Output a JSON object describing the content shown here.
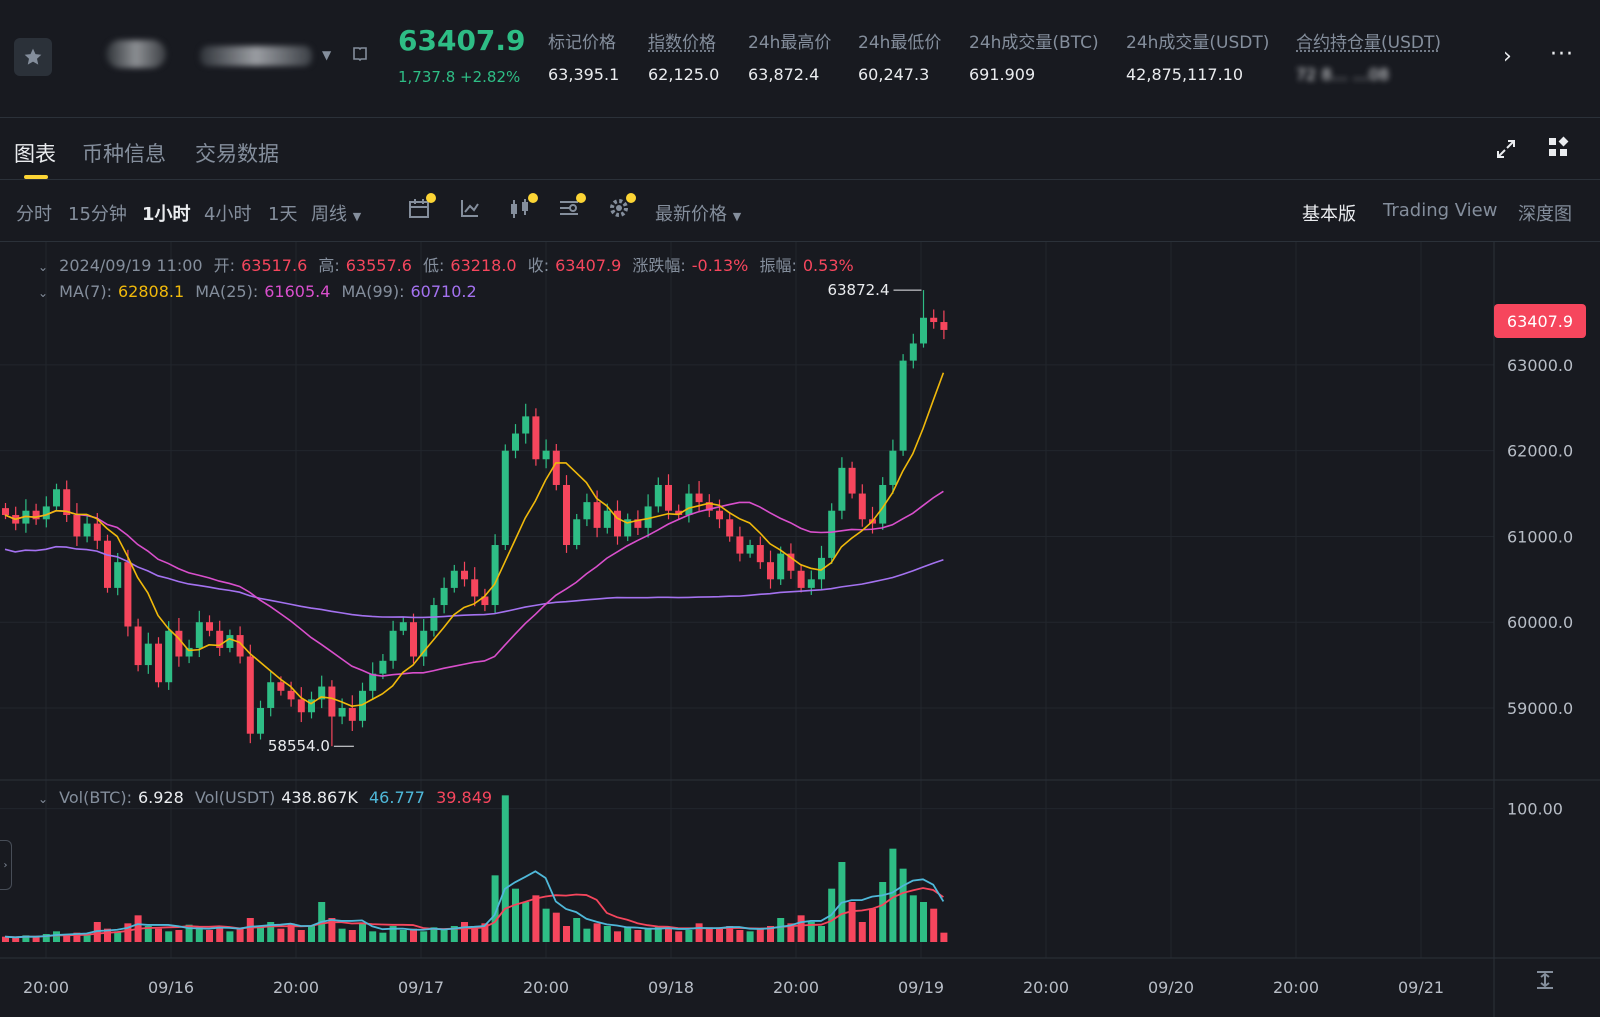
{
  "header": {
    "last_price": "63407.9",
    "change": "1,737.8 +2.82%",
    "stats": [
      {
        "label": "标记价格",
        "value": "63,395.1"
      },
      {
        "label": "指数价格",
        "value": "62,125.0"
      },
      {
        "label": "24h最高价",
        "value": "63,872.4"
      },
      {
        "label": "24h最低价",
        "value": "60,247.3"
      },
      {
        "label": "24h成交量(BTC)",
        "value": "691.909"
      },
      {
        "label": "24h成交量(USDT)",
        "value": "42,875,117.10"
      },
      {
        "label": "合约持仓量(USDT)",
        "value": "72 8… …08"
      }
    ]
  },
  "tabs": [
    "图表",
    "币种信息",
    "交易数据"
  ],
  "toolbar": {
    "timeframes": [
      "分时",
      "15分钟",
      "1小时",
      "4小时",
      "1天",
      "周线"
    ],
    "active_timeframe": "1小时",
    "price_type": "最新价格",
    "views": [
      "基本版",
      "Trading View",
      "深度图"
    ],
    "active_view": "基本版"
  },
  "legend": {
    "date": "2024/09/19 11:00",
    "open_label": "开:",
    "open": "63517.6",
    "high_label": "高:",
    "high": "63557.6",
    "low_label": "低:",
    "low": "63218.0",
    "close_label": "收:",
    "close": "63407.9",
    "change_label": "涨跌幅:",
    "change": "-0.13%",
    "amp_label": "振幅:",
    "amp": "0.53%",
    "ma7_label": "MA(7):",
    "ma7": "62808.1",
    "ma25_label": "MA(25):",
    "ma25": "61605.4",
    "ma99_label": "MA(99):",
    "ma99": "60710.2",
    "vol_btc_label": "Vol(BTC):",
    "vol_btc": "6.928",
    "vol_usdt_label": "Vol(USDT)",
    "vol_usdt": "438.867K",
    "vol_ma1": "46.777",
    "vol_ma2": "39.849"
  },
  "price_tag": "63407.9",
  "colors": {
    "up": "#2ebd85",
    "down": "#f6465d",
    "ma7": "#f0b90b",
    "ma25": "#d94fcc",
    "ma99": "#a472f0",
    "vma1": "#4fb8d9",
    "vma2": "#f6465d"
  },
  "chart_data": {
    "type": "candlestick",
    "y_ticks": [
      "63000.0",
      "62000.0",
      "61000.0",
      "60000.0",
      "59000.0"
    ],
    "ylim": [
      58300,
      64200
    ],
    "vol_tick": "100.00",
    "x_ticks": [
      "20:00",
      "09/16",
      "20:00",
      "09/17",
      "20:00",
      "09/18",
      "20:00",
      "09/19",
      "20:00",
      "09/20",
      "20:00",
      "09/21"
    ],
    "high_marker": "63872.4",
    "low_marker": "58554.0",
    "close_path": [
      61250,
      61150,
      61300,
      61200,
      61350,
      61550,
      61250,
      61000,
      61150,
      60950,
      60400,
      60700,
      59950,
      59500,
      59750,
      59300,
      59900,
      59600,
      59700,
      60000,
      59900,
      59700,
      59850,
      59600,
      58700,
      59000,
      59300,
      59200,
      59100,
      58950,
      59100,
      59250,
      58900,
      59000,
      58850,
      59200,
      59400,
      59550,
      59900,
      60000,
      59600,
      59900,
      60200,
      60400,
      60600,
      60500,
      60300,
      60200,
      60900,
      62000,
      62200,
      62400,
      61900,
      62000,
      61600,
      60900,
      61200,
      61400,
      61100,
      61300,
      61000,
      61200,
      61100,
      61350,
      61600,
      61300,
      61250,
      61500,
      61400,
      61300,
      61200,
      61000,
      60800,
      60900,
      60700,
      60500,
      60800,
      60600,
      60400,
      60500,
      60750,
      61300,
      61800,
      61500,
      61200,
      61150,
      61600,
      62000,
      63050,
      63250,
      63550,
      63500,
      63407.9
    ],
    "volume_btc": [
      4,
      3,
      5,
      4,
      6,
      8,
      5,
      7,
      6,
      15,
      10,
      8,
      14,
      20,
      12,
      10,
      8,
      9,
      13,
      11,
      9,
      12,
      8,
      10,
      18,
      12,
      15,
      10,
      14,
      9,
      12,
      30,
      18,
      10,
      9,
      14,
      8,
      7,
      12,
      9,
      10,
      8,
      11,
      9,
      12,
      15,
      10,
      14,
      50,
      110,
      40,
      30,
      35,
      25,
      22,
      12,
      18,
      10,
      14,
      12,
      8,
      11,
      9,
      10,
      12,
      10,
      8,
      9,
      14,
      11,
      10,
      12,
      9,
      8,
      10,
      12,
      18,
      14,
      20,
      15,
      12,
      40,
      60,
      30,
      15,
      25,
      45,
      70,
      55,
      35,
      30,
      25,
      7
    ]
  }
}
